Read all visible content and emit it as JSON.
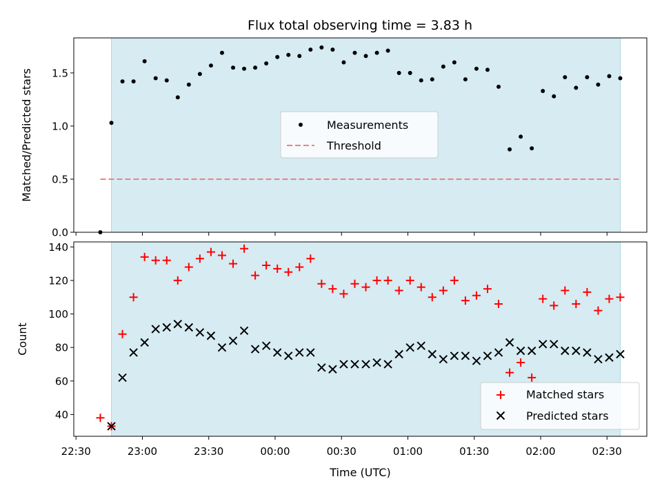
{
  "figure": {
    "title": "Flux total observing time = 3.83 h",
    "shade_color": "#add8e6",
    "threshold_color": "#f08080",
    "matched_color": "#ff0000",
    "predicted_color": "#000000"
  },
  "chart_data": [
    {
      "type": "scatter",
      "ylabel": "Matched/Predicted stars",
      "ylim": [
        0,
        1.83
      ],
      "yticks": [
        0.0,
        0.5,
        1.0,
        1.5
      ],
      "ytick_labels": [
        "0.0",
        "0.5",
        "1.0",
        "1.5"
      ],
      "xlim": [
        "22:29",
        "02:48"
      ],
      "observing_window": [
        "22:46",
        "02:36"
      ],
      "threshold": {
        "y": 0.5,
        "x_start": "22:41",
        "x_end": "02:36"
      },
      "legend": {
        "entries": [
          "Measurements",
          "Threshold"
        ],
        "placement": "center"
      },
      "series": [
        {
          "name": "Measurements",
          "x": [
            "22:41",
            "22:46",
            "22:51",
            "22:56",
            "23:01",
            "23:06",
            "23:11",
            "23:16",
            "23:21",
            "23:26",
            "23:31",
            "23:36",
            "23:41",
            "23:46",
            "23:51",
            "23:56",
            "00:01",
            "00:06",
            "00:11",
            "00:16",
            "00:21",
            "00:26",
            "00:31",
            "00:36",
            "00:41",
            "00:46",
            "00:51",
            "00:56",
            "01:01",
            "01:06",
            "01:11",
            "01:16",
            "01:21",
            "01:26",
            "01:31",
            "01:36",
            "01:41",
            "01:46",
            "01:51",
            "01:56",
            "02:01",
            "02:06",
            "02:11",
            "02:16",
            "02:21",
            "02:26",
            "02:31",
            "02:36"
          ],
          "values": [
            0.0,
            1.03,
            1.42,
            1.42,
            1.61,
            1.45,
            1.43,
            1.27,
            1.39,
            1.49,
            1.57,
            1.69,
            1.55,
            1.54,
            1.55,
            1.59,
            1.65,
            1.67,
            1.66,
            1.72,
            1.74,
            1.72,
            1.6,
            1.69,
            1.66,
            1.69,
            1.71,
            1.5,
            1.5,
            1.43,
            1.44,
            1.56,
            1.6,
            1.44,
            1.54,
            1.53,
            1.37,
            0.78,
            0.9,
            0.79,
            1.33,
            1.28,
            1.46,
            1.36,
            1.46,
            1.39,
            1.47,
            1.45
          ]
        }
      ]
    },
    {
      "type": "scatter",
      "ylabel": "Count",
      "xlabel": "Time (UTC)",
      "ylim": [
        27,
        143
      ],
      "yticks": [
        40,
        60,
        80,
        100,
        120,
        140
      ],
      "ytick_labels": [
        "40",
        "60",
        "80",
        "100",
        "120",
        "140"
      ],
      "xlim": [
        "22:29",
        "02:48"
      ],
      "xticks": [
        "22:30",
        "23:00",
        "23:30",
        "00:00",
        "00:30",
        "01:00",
        "01:30",
        "02:00",
        "02:30"
      ],
      "xtick_labels": [
        "22:30",
        "23:00",
        "23:30",
        "00:00",
        "00:30",
        "01:00",
        "01:30",
        "02:00",
        "02:30"
      ],
      "observing_window": [
        "22:46",
        "02:36"
      ],
      "legend": {
        "entries": [
          "Matched stars",
          "Predicted stars"
        ],
        "placement": "lower right"
      },
      "series": [
        {
          "name": "Matched stars",
          "marker": "+",
          "x": [
            "22:41",
            "22:46",
            "22:51",
            "22:56",
            "23:01",
            "23:06",
            "23:11",
            "23:16",
            "23:21",
            "23:26",
            "23:31",
            "23:36",
            "23:41",
            "23:46",
            "23:51",
            "23:56",
            "00:01",
            "00:06",
            "00:11",
            "00:16",
            "00:21",
            "00:26",
            "00:31",
            "00:36",
            "00:41",
            "00:46",
            "00:51",
            "00:56",
            "01:01",
            "01:06",
            "01:11",
            "01:16",
            "01:21",
            "01:26",
            "01:31",
            "01:36",
            "01:41",
            "01:46",
            "01:51",
            "01:56",
            "02:01",
            "02:06",
            "02:11",
            "02:16",
            "02:21",
            "02:26",
            "02:31",
            "02:36"
          ],
          "values": [
            38,
            33,
            88,
            110,
            134,
            132,
            132,
            120,
            128,
            133,
            137,
            135,
            130,
            139,
            123,
            129,
            127,
            125,
            128,
            133,
            118,
            115,
            112,
            118,
            116,
            120,
            120,
            114,
            120,
            116,
            110,
            114,
            120,
            108,
            111,
            115,
            106,
            65,
            71,
            62,
            109,
            105,
            114,
            106,
            113,
            102,
            109,
            110
          ]
        },
        {
          "name": "Predicted stars",
          "marker": "x",
          "x": [
            "22:46",
            "22:51",
            "22:56",
            "23:01",
            "23:06",
            "23:11",
            "23:16",
            "23:21",
            "23:26",
            "23:31",
            "23:36",
            "23:41",
            "23:46",
            "23:51",
            "23:56",
            "00:01",
            "00:06",
            "00:11",
            "00:16",
            "00:21",
            "00:26",
            "00:31",
            "00:36",
            "00:41",
            "00:46",
            "00:51",
            "00:56",
            "01:01",
            "01:06",
            "01:11",
            "01:16",
            "01:21",
            "01:26",
            "01:31",
            "01:36",
            "01:41",
            "01:46",
            "01:51",
            "01:56",
            "02:01",
            "02:06",
            "02:11",
            "02:16",
            "02:21",
            "02:26",
            "02:31",
            "02:36"
          ],
          "values": [
            33,
            62,
            77,
            83,
            91,
            92,
            94,
            92,
            89,
            87,
            80,
            84,
            90,
            79,
            81,
            77,
            75,
            77,
            77,
            68,
            67,
            70,
            70,
            70,
            71,
            70,
            76,
            80,
            81,
            76,
            73,
            75,
            75,
            72,
            75,
            77,
            83,
            78,
            78,
            82,
            82,
            78,
            78,
            77,
            73,
            74,
            76
          ]
        }
      ]
    }
  ]
}
